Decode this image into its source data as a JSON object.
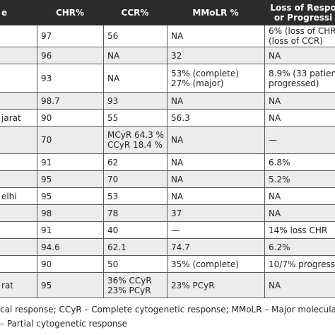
{
  "header": {
    "col0": "e",
    "col1": "CHR%",
    "col2": "CCR%",
    "col3": "MMoLR %",
    "col4_line1": "Loss of Respo",
    "col4_line2": "or Progressi"
  },
  "rows": [
    {
      "c0": "",
      "c1": "97",
      "c2": "56",
      "c3": "NA",
      "c4": "6% (loss of CHR",
      "c4b": "(loss of CCR)"
    },
    {
      "c0": "",
      "c1": "96",
      "c2": "NA",
      "c3": "32",
      "c4": "NA",
      "c4b": ""
    },
    {
      "c0": "",
      "c1": "93",
      "c2": "NA",
      "c3": "53% (complete)",
      "c3b": "27% (major)",
      "c4": "8.9% (33 patien",
      "c4b": "progressed)"
    },
    {
      "c0": "",
      "c1": "98.7",
      "c2": "93",
      "c3": "NA",
      "c4": "NA",
      "c4b": ""
    },
    {
      "c0": "jarat",
      "c1": "90",
      "c2": "55",
      "c3": "56.3",
      "c4": "NA",
      "c4b": ""
    },
    {
      "c0": "",
      "c1": "70",
      "c2": "MCyR 64.3 %",
      "c2b": "CCyR 18.4 %",
      "c3": "NA",
      "c4": "—",
      "c4b": ""
    },
    {
      "c0": "",
      "c1": "91",
      "c2": "62",
      "c3": "NA",
      "c4": "6.8%",
      "c4b": ""
    },
    {
      "c0": "",
      "c1": "95",
      "c2": "70",
      "c3": "NA",
      "c4": "5.2%",
      "c4b": ""
    },
    {
      "c0": "elhi",
      "c1": "95",
      "c2": "53",
      "c3": "NA",
      "c4": "NA",
      "c4b": ""
    },
    {
      "c0": "",
      "c1": "98",
      "c2": "78",
      "c3": "37",
      "c4": "NA",
      "c4b": ""
    },
    {
      "c0": "",
      "c1": "91",
      "c2": "40",
      "c3": "—",
      "c4": "14% loss CHR",
      "c4b": ""
    },
    {
      "c0": "",
      "c1": "94.6",
      "c2": "62.1",
      "c3": "74.7",
      "c4": "6.2%",
      "c4b": ""
    },
    {
      "c0": "",
      "c1": "90",
      "c2": "50",
      "c3": "35% (complete)",
      "c4": "10/7% progress",
      "c4b": ""
    },
    {
      "c0": "rat",
      "c1": "95",
      "c2": "36% CCyR",
      "c2b": "23% PCyR",
      "c3": "23% PCyR",
      "c4": "NA",
      "c4b": ""
    }
  ],
  "footnote": {
    "line1": "cal response; CCyR – Complete cytogenetic response; MMoLR – Major molecular response",
    "line2": "– Partial cytogenetic response"
  }
}
